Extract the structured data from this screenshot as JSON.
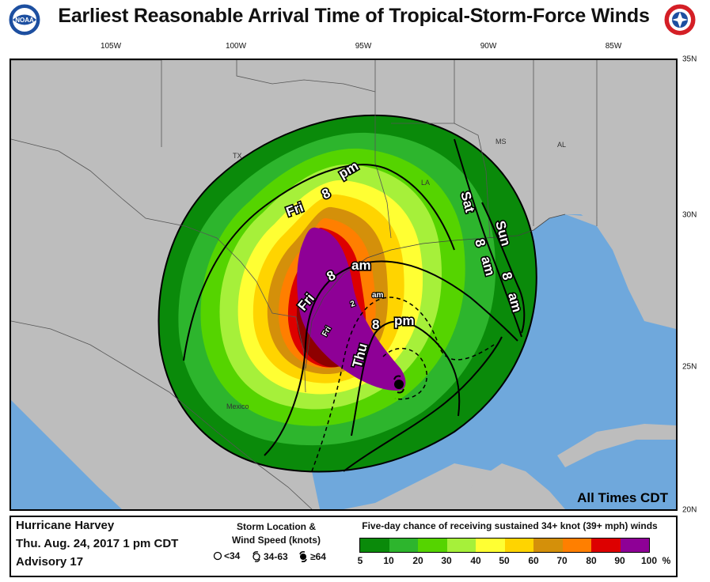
{
  "header": {
    "title": "Earliest Reasonable Arrival Time of Tropical-Storm-Force Winds",
    "logo_left_text": "NOAA",
    "logo_right_icon": "nws-logo-icon"
  },
  "axes": {
    "longitude_labels": [
      "105W",
      "100W",
      "95W",
      "90W",
      "85W"
    ],
    "latitude_labels": [
      "35N",
      "30N",
      "25N",
      "20N"
    ]
  },
  "map": {
    "state_labels": [
      "TX",
      "LA",
      "MS",
      "AL",
      "Mexico"
    ],
    "contour_labels": [
      {
        "day": "Fri",
        "hour": "8",
        "ampm": "pm"
      },
      {
        "day": "Fri",
        "hour": "8",
        "ampm": "am"
      },
      {
        "day": "Fri",
        "hour": "2",
        "ampm": "am"
      },
      {
        "day": "Thu",
        "hour": "8",
        "ampm": "pm"
      },
      {
        "day": "Sat",
        "hour": "8",
        "ampm": "am"
      },
      {
        "day": "Sun",
        "hour": "8",
        "ampm": "am"
      }
    ],
    "time_note": "All Times CDT",
    "colors": {
      "land": "#bdbdbd",
      "water": "#6fa8dc",
      "p5": "#0a8a0a",
      "p10": "#2db52d",
      "p20": "#55d400",
      "p30": "#a6f03a",
      "p40": "#ffff33",
      "p50": "#ffd400",
      "p60": "#d4900a",
      "p70": "#ff7f00",
      "p80": "#dd0000",
      "p90": "#8e0000",
      "p100": "#8e0096"
    }
  },
  "legend": {
    "storm_name": "Hurricane Harvey",
    "datetime": "Thu. Aug. 24, 2017  1 pm CDT",
    "advisory": "Advisory 17",
    "location_title_line1": "Storm Location &",
    "location_title_line2": "Wind Speed (knots)",
    "symbols": [
      {
        "icon": "circle-icon",
        "label": "<34"
      },
      {
        "icon": "tropical-storm-icon",
        "label": "34-63"
      },
      {
        "icon": "hurricane-icon",
        "label": "≥64"
      }
    ],
    "scale_title": "Five-day chance of receiving sustained 34+ knot (39+ mph) winds",
    "scale_values": [
      "5",
      "10",
      "20",
      "30",
      "40",
      "50",
      "60",
      "70",
      "80",
      "90",
      "100"
    ],
    "scale_unit": "%",
    "scale_colors": [
      "#0a8a0a",
      "#2db52d",
      "#55d400",
      "#a6f03a",
      "#ffff33",
      "#ffd400",
      "#d4900a",
      "#ff7f00",
      "#dd0000",
      "#8e0000"
    ]
  }
}
